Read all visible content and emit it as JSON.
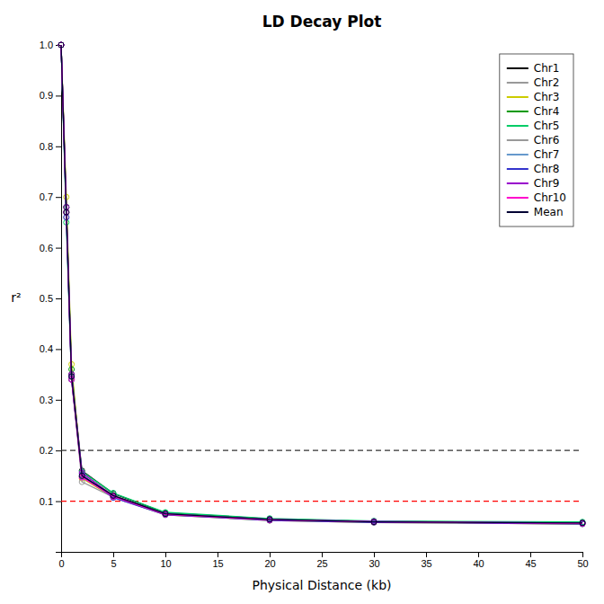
{
  "chart_data": {
    "type": "line",
    "title": "LD Decay Plot",
    "xlabel": "Physical Distance (kb)",
    "ylabel": "r²",
    "x": [
      0,
      0.5,
      1,
      2,
      5,
      10,
      20,
      30,
      50
    ],
    "series": [
      {
        "name": "Chr1",
        "color": "#000000",
        "values": [
          1.0,
          0.68,
          0.35,
          0.16,
          0.115,
          0.077,
          0.065,
          0.06,
          0.058
        ]
      },
      {
        "name": "Chr2",
        "color": "#999999",
        "values": [
          1.0,
          0.66,
          0.34,
          0.155,
          0.112,
          0.075,
          0.063,
          0.059,
          0.056
        ]
      },
      {
        "name": "Chr3",
        "color": "#CCCC00",
        "values": [
          1.0,
          0.7,
          0.37,
          0.145,
          0.108,
          0.073,
          0.062,
          0.058,
          0.055
        ]
      },
      {
        "name": "Chr4",
        "color": "#009900",
        "values": [
          1.0,
          0.68,
          0.36,
          0.148,
          0.11,
          0.076,
          0.064,
          0.06,
          0.057
        ]
      },
      {
        "name": "Chr5",
        "color": "#00CC66",
        "values": [
          1.0,
          0.65,
          0.34,
          0.158,
          0.116,
          0.078,
          0.066,
          0.061,
          0.059
        ]
      },
      {
        "name": "Chr6",
        "color": "#999999",
        "values": [
          1.0,
          0.67,
          0.345,
          0.138,
          0.108,
          0.074,
          0.063,
          0.059,
          0.056
        ]
      },
      {
        "name": "Chr7",
        "color": "#6699CC",
        "values": [
          1.0,
          0.67,
          0.346,
          0.148,
          0.11,
          0.075,
          0.064,
          0.06,
          0.057
        ]
      },
      {
        "name": "Chr8",
        "color": "#3333CC",
        "values": [
          1.0,
          0.66,
          0.34,
          0.152,
          0.107,
          0.073,
          0.062,
          0.058,
          0.055
        ]
      },
      {
        "name": "Chr9",
        "color": "#9900CC",
        "values": [
          1.0,
          0.68,
          0.35,
          0.156,
          0.11,
          0.075,
          0.064,
          0.06,
          0.057
        ]
      },
      {
        "name": "Chr10",
        "color": "#FF00CC",
        "values": [
          1.0,
          0.67,
          0.34,
          0.147,
          0.109,
          0.074,
          0.063,
          0.059,
          0.056
        ]
      },
      {
        "name": "Mean",
        "color": "#000033",
        "values": [
          1.0,
          0.67,
          0.346,
          0.15,
          0.111,
          0.075,
          0.064,
          0.059,
          0.057
        ]
      }
    ],
    "marker": "circle",
    "hlines": [
      {
        "value": 0.2,
        "color": "#333333",
        "line_style": "dashed"
      },
      {
        "value": 0.1,
        "color": "#FF0000",
        "line_style": "dashed"
      }
    ],
    "xlim": [
      0,
      50
    ],
    "ylim": [
      0,
      1.0
    ],
    "xticks": [
      0,
      5,
      10,
      15,
      20,
      25,
      30,
      35,
      40,
      45,
      50
    ],
    "yticks": [
      0.1,
      0.2,
      0.3,
      0.4,
      0.5,
      0.6,
      0.7,
      0.8,
      0.9,
      {
        "value": 1.0,
        "label": "1.0"
      }
    ],
    "grid": false,
    "legend": "upper right"
  }
}
